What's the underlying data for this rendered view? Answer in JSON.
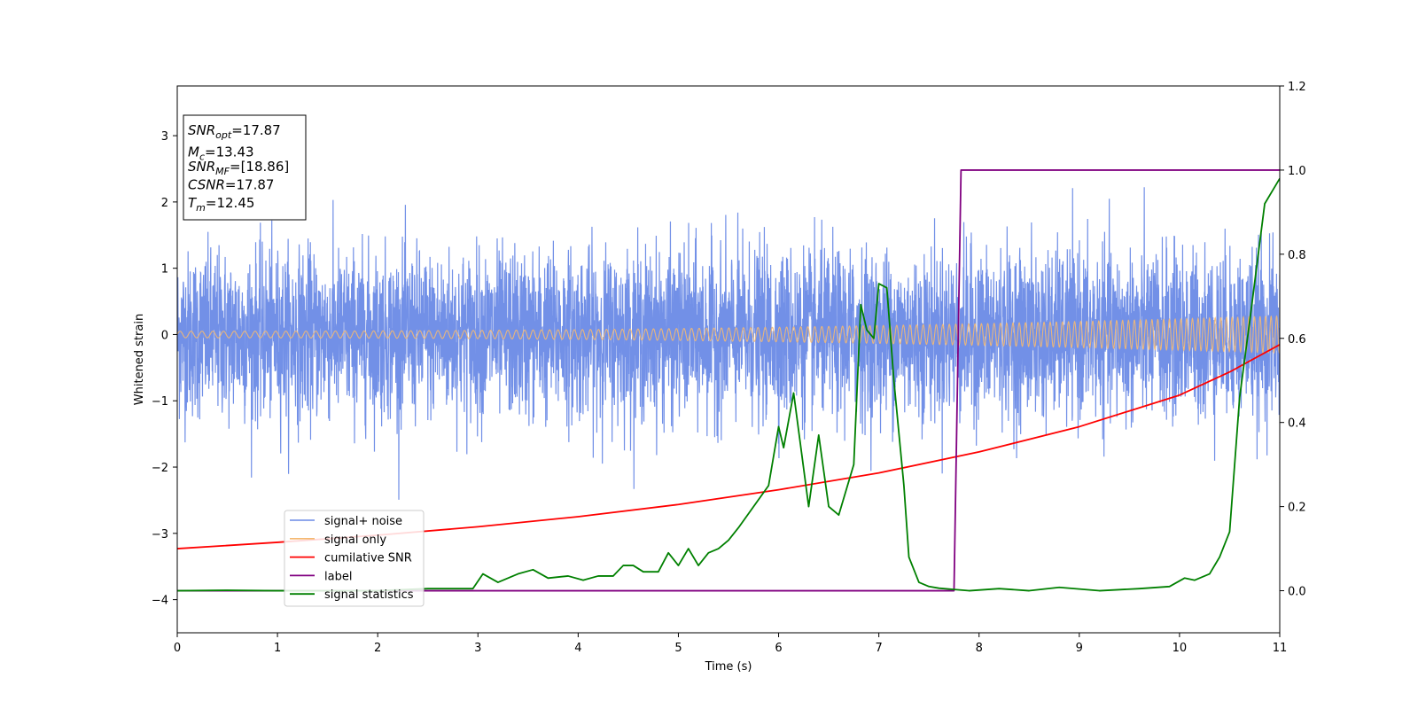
{
  "chart_data": {
    "type": "line",
    "xlabel": "Time (s)",
    "ylabel": "Whitened strain",
    "xlim": [
      0,
      11
    ],
    "ylim": [
      -4.5,
      3.75
    ],
    "y2lim": [
      -0.1,
      1.2
    ],
    "x_ticks": [
      0,
      1,
      2,
      3,
      4,
      5,
      6,
      7,
      8,
      9,
      10,
      11
    ],
    "x_tick_labels": [
      "0",
      "1",
      "2",
      "3",
      "4",
      "5",
      "6",
      "7",
      "8",
      "9",
      "10",
      "11"
    ],
    "y_ticks": [
      -4,
      -3,
      -2,
      -1,
      0,
      1,
      2,
      3
    ],
    "y_tick_labels": [
      "−4",
      "−3",
      "−2",
      "−1",
      "0",
      "1",
      "2",
      "3"
    ],
    "y2_ticks": [
      0.0,
      0.2,
      0.4,
      0.6,
      0.8,
      1.0,
      1.2
    ],
    "y2_tick_labels": [
      "0.0",
      "0.2",
      "0.4",
      "0.6",
      "0.8",
      "1.0",
      "1.2"
    ],
    "legend_position": "lower-left",
    "series": [
      {
        "name": "signal+ noise",
        "color": "#6a8ae6",
        "axis": "left",
        "noise_amplitude": 1.6
      },
      {
        "name": "signal only",
        "color": "#f5b971",
        "axis": "left",
        "amplitude_start": 0.05,
        "amplitude_end": 0.28
      },
      {
        "name": "cumilative SNR",
        "color": "#ff0000",
        "axis": "right",
        "x": [
          0,
          1,
          2,
          3,
          4,
          5,
          6,
          7,
          8,
          9,
          10,
          10.5,
          11
        ],
        "y": [
          0.1,
          0.115,
          0.132,
          0.152,
          0.176,
          0.205,
          0.24,
          0.28,
          0.33,
          0.39,
          0.465,
          0.52,
          0.585
        ]
      },
      {
        "name": "label",
        "color": "#800080",
        "axis": "right",
        "x": [
          0,
          7.75,
          7.82,
          11
        ],
        "y": [
          0,
          0,
          1,
          1
        ]
      },
      {
        "name": "signal statistics",
        "color": "#008000",
        "axis": "right",
        "x": [
          0,
          0.5,
          1,
          1.5,
          2,
          2.5,
          2.8,
          2.95,
          3.05,
          3.2,
          3.4,
          3.55,
          3.7,
          3.9,
          4.05,
          4.2,
          4.35,
          4.45,
          4.55,
          4.65,
          4.8,
          4.9,
          5.0,
          5.1,
          5.2,
          5.3,
          5.4,
          5.5,
          5.6,
          5.75,
          5.9,
          6.0,
          6.05,
          6.15,
          6.3,
          6.4,
          6.5,
          6.6,
          6.75,
          6.82,
          6.88,
          6.95,
          7.0,
          7.08,
          7.15,
          7.25,
          7.3,
          7.4,
          7.5,
          7.6,
          7.75,
          7.9,
          8.2,
          8.5,
          8.8,
          9.2,
          9.6,
          9.9,
          10.05,
          10.15,
          10.3,
          10.4,
          10.5,
          10.6,
          10.7,
          10.85,
          11
        ],
        "y": [
          0.0,
          0.001,
          0.0,
          0.0,
          0.0,
          0.005,
          0.005,
          0.005,
          0.04,
          0.02,
          0.04,
          0.05,
          0.03,
          0.035,
          0.025,
          0.035,
          0.035,
          0.06,
          0.06,
          0.045,
          0.045,
          0.09,
          0.06,
          0.1,
          0.06,
          0.09,
          0.1,
          0.12,
          0.15,
          0.2,
          0.25,
          0.39,
          0.34,
          0.47,
          0.2,
          0.37,
          0.2,
          0.18,
          0.3,
          0.68,
          0.62,
          0.6,
          0.73,
          0.72,
          0.5,
          0.25,
          0.08,
          0.02,
          0.01,
          0.006,
          0.003,
          0.0,
          0.005,
          0.0,
          0.008,
          0.0,
          0.005,
          0.01,
          0.03,
          0.025,
          0.04,
          0.08,
          0.14,
          0.46,
          0.64,
          0.92,
          0.98
        ]
      }
    ],
    "annotations": [
      {
        "base": "SNR",
        "sub": "opt",
        "value": "=17.87"
      },
      {
        "base": "M",
        "sub": "c",
        "value": "=13.43"
      },
      {
        "base": "SNR",
        "sub": "MF",
        "value": "=[18.86]"
      },
      {
        "base": "CSNR",
        "sub": "",
        "value": "=17.87"
      },
      {
        "base": "T",
        "sub": "m",
        "value": "=12.45"
      }
    ]
  }
}
